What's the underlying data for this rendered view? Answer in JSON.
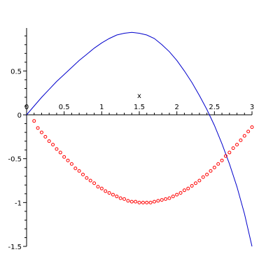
{
  "chart_data": {
    "type": "line",
    "xlabel": "x",
    "ylabel": "",
    "xlim": [
      0,
      3
    ],
    "ylim": [
      -1.5,
      0.95
    ],
    "x_ticks": [
      0,
      0.5,
      1,
      1.5,
      2,
      2.5,
      3
    ],
    "x_tick_labels": [
      "0",
      "0.5",
      "1",
      "1.5",
      "2",
      "2.5",
      "3"
    ],
    "y_ticks": [
      -1.5,
      -1,
      -0.5,
      0,
      0.5
    ],
    "y_tick_labels": [
      "-1.5",
      "-1",
      "-0.5",
      "0",
      "0.5"
    ],
    "grid": false,
    "series": [
      {
        "style": "line",
        "color": "#0000cc",
        "x": [
          0,
          0.1,
          0.2,
          0.3,
          0.4,
          0.5,
          0.6,
          0.7,
          0.8,
          0.9,
          1.0,
          1.1,
          1.2,
          1.3,
          1.4,
          1.5,
          1.6,
          1.7,
          1.8,
          1.9,
          2.0,
          2.1,
          2.2,
          2.3,
          2.4,
          2.5,
          2.6,
          2.7,
          2.8,
          2.9,
          3.0
        ],
        "y": [
          0,
          0.1,
          0.2,
          0.29,
          0.38,
          0.46,
          0.54,
          0.62,
          0.69,
          0.76,
          0.82,
          0.87,
          0.91,
          0.93,
          0.94,
          0.93,
          0.91,
          0.87,
          0.8,
          0.72,
          0.62,
          0.5,
          0.37,
          0.22,
          0.06,
          -0.12,
          -0.33,
          -0.56,
          -0.82,
          -1.13,
          -1.5
        ]
      },
      {
        "style": "markers",
        "color": "#ff0000",
        "x": [
          0.1,
          0.15,
          0.2,
          0.25,
          0.3,
          0.35,
          0.4,
          0.45,
          0.5,
          0.55,
          0.6,
          0.65,
          0.7,
          0.75,
          0.8,
          0.85,
          0.9,
          0.95,
          1.0,
          1.05,
          1.1,
          1.15,
          1.2,
          1.25,
          1.3,
          1.35,
          1.4,
          1.45,
          1.5,
          1.55,
          1.6,
          1.65,
          1.7,
          1.75,
          1.8,
          1.85,
          1.9,
          1.95,
          2.0,
          2.05,
          2.1,
          2.15,
          2.2,
          2.25,
          2.3,
          2.35,
          2.4,
          2.45,
          2.5,
          2.55,
          2.6,
          2.65,
          2.7,
          2.75,
          2.8,
          2.85,
          2.9,
          2.95,
          3.0
        ],
        "y": [
          -0.07,
          -0.15,
          -0.2,
          -0.25,
          -0.3,
          -0.34,
          -0.39,
          -0.43,
          -0.48,
          -0.52,
          -0.56,
          -0.61,
          -0.64,
          -0.68,
          -0.72,
          -0.75,
          -0.78,
          -0.82,
          -0.84,
          -0.87,
          -0.89,
          -0.91,
          -0.93,
          -0.95,
          -0.96,
          -0.98,
          -0.99,
          -0.99,
          -1.0,
          -1.0,
          -1.0,
          -1.0,
          -0.99,
          -0.98,
          -0.97,
          -0.96,
          -0.95,
          -0.93,
          -0.91,
          -0.89,
          -0.86,
          -0.84,
          -0.81,
          -0.78,
          -0.75,
          -0.71,
          -0.68,
          -0.64,
          -0.6,
          -0.56,
          -0.52,
          -0.47,
          -0.43,
          -0.38,
          -0.34,
          -0.29,
          -0.24,
          -0.19,
          -0.14
        ]
      }
    ]
  }
}
